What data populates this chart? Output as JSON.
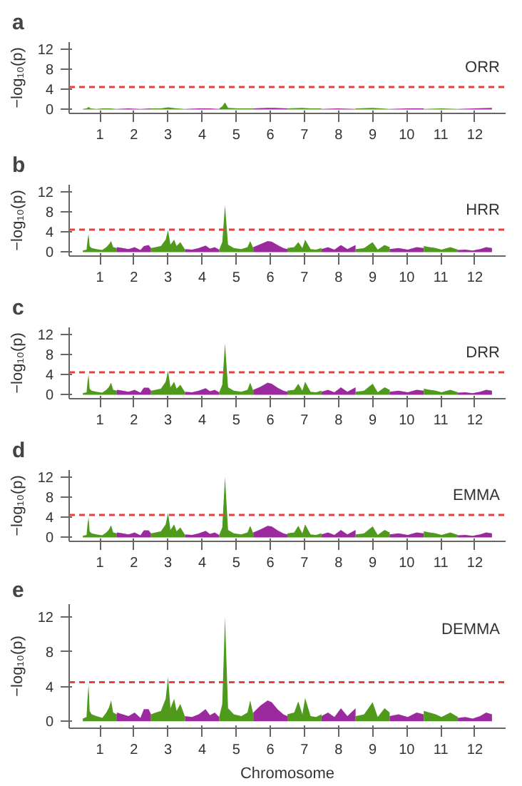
{
  "chart_data": [
    {
      "type": "area",
      "title": "a",
      "ylabel": "−log₁₀(p)",
      "annotations": [
        "ORR"
      ],
      "xlim": [
        0.1,
        12.9
      ],
      "ylim": [
        -0.8,
        13.5
      ],
      "yticks": [
        0,
        4,
        8,
        12
      ],
      "xticks": [
        1,
        2,
        3,
        4,
        5,
        6,
        7,
        8,
        9,
        10,
        11,
        12
      ],
      "ref_lines": [
        {
          "axis": "y",
          "value": 4.5,
          "color": "#e8413a",
          "line_style": "dashed"
        }
      ],
      "series": [
        {
          "color": "#4f9a1c",
          "x": [
            0.5,
            0.61,
            0.67,
            0.73,
            0.9,
            1.07,
            1.3,
            1.5
          ],
          "values": [
            0.1,
            0.2,
            0.5,
            0.2,
            0.1,
            0.2,
            0.2,
            0.1
          ]
        },
        {
          "color": "#9b2a9e",
          "x": [
            1.5,
            1.84,
            2.19,
            2.5
          ],
          "values": [
            0.1,
            0.2,
            0.1,
            0.2
          ]
        },
        {
          "color": "#4f9a1c",
          "x": [
            2.5,
            2.79,
            3.0,
            3.25,
            3.5
          ],
          "values": [
            0.2,
            0.2,
            0.4,
            0.2,
            0.1
          ]
        },
        {
          "color": "#9b2a9e",
          "x": [
            3.5,
            3.9,
            4.23,
            4.5
          ],
          "values": [
            0.1,
            0.2,
            0.2,
            0.1
          ]
        },
        {
          "color": "#4f9a1c",
          "x": [
            4.5,
            4.59,
            4.67,
            4.76,
            5.07,
            5.5
          ],
          "values": [
            0.2,
            0.6,
            1.4,
            0.3,
            0.2,
            0.2
          ]
        },
        {
          "color": "#9b2a9e",
          "x": [
            5.5,
            5.92,
            6.13,
            6.5
          ],
          "values": [
            0.2,
            0.3,
            0.3,
            0.2
          ]
        },
        {
          "color": "#4f9a1c",
          "x": [
            6.5,
            6.94,
            7.18,
            7.5
          ],
          "values": [
            0.2,
            0.3,
            0.2,
            0.2
          ]
        },
        {
          "color": "#9b2a9e",
          "x": [
            7.5,
            7.98,
            8.5
          ],
          "values": [
            0.1,
            0.2,
            0.1
          ]
        },
        {
          "color": "#4f9a1c",
          "x": [
            8.5,
            9.0,
            9.5
          ],
          "values": [
            0.2,
            0.3,
            0.1
          ]
        },
        {
          "color": "#9b2a9e",
          "x": [
            9.5,
            10.03,
            10.5
          ],
          "values": [
            0.1,
            0.2,
            0.2
          ]
        },
        {
          "color": "#4f9a1c",
          "x": [
            10.5,
            11.02,
            11.5
          ],
          "values": [
            0.1,
            0.2,
            0.1
          ]
        },
        {
          "color": "#9b2a9e",
          "x": [
            11.5,
            11.98,
            12.5
          ],
          "values": [
            0.1,
            0.2,
            0.3
          ]
        }
      ]
    },
    {
      "type": "area",
      "title": "b",
      "ylabel": "−log₁₀(p)",
      "annotations": [
        "HRR"
      ],
      "xlim": [
        0.1,
        12.9
      ],
      "ylim": [
        -0.8,
        13.5
      ],
      "yticks": [
        0,
        4,
        8,
        12
      ],
      "xticks": [
        1,
        2,
        3,
        4,
        5,
        6,
        7,
        8,
        9,
        10,
        11,
        12
      ],
      "ref_lines": [
        {
          "axis": "y",
          "value": 4.5,
          "color": "#e8413a",
          "line_style": "dashed"
        }
      ],
      "series": [
        {
          "color": "#4f9a1c",
          "x": [
            0.5,
            0.61,
            0.64,
            0.67,
            0.7,
            0.76,
            0.9,
            1.07,
            1.19,
            1.27,
            1.33,
            1.39,
            1.5
          ],
          "values": [
            0.3,
            0.5,
            2.5,
            3.6,
            1.2,
            0.8,
            0.6,
            0.4,
            1.0,
            1.6,
            2.2,
            1.0,
            0.8
          ]
        },
        {
          "color": "#9b2a9e",
          "x": [
            1.5,
            1.67,
            1.84,
            2.02,
            2.19,
            2.29,
            2.43,
            2.5
          ],
          "values": [
            1.0,
            0.8,
            0.6,
            1.0,
            0.4,
            1.2,
            1.4,
            0.8
          ]
        },
        {
          "color": "#4f9a1c",
          "x": [
            2.5,
            2.64,
            2.79,
            2.93,
            3.0,
            3.07,
            3.18,
            3.25,
            3.36,
            3.5
          ],
          "values": [
            0.8,
            1.0,
            1.2,
            2.5,
            4.4,
            1.5,
            2.5,
            1.2,
            2.0,
            0.5
          ]
        },
        {
          "color": "#9b2a9e",
          "x": [
            3.5,
            3.7,
            3.9,
            4.1,
            4.23,
            4.37,
            4.5
          ],
          "values": [
            0.6,
            0.5,
            0.8,
            1.3,
            0.7,
            1.0,
            0.5
          ]
        },
        {
          "color": "#4f9a1c",
          "x": [
            4.5,
            4.59,
            4.67,
            4.76,
            4.93,
            5.15,
            5.33,
            5.41,
            5.5
          ],
          "values": [
            0.5,
            2.0,
            9.4,
            1.5,
            0.8,
            0.6,
            1.0,
            2.2,
            0.8
          ]
        },
        {
          "color": "#9b2a9e",
          "x": [
            5.5,
            5.71,
            5.92,
            6.04,
            6.21,
            6.38,
            6.5
          ],
          "values": [
            1.0,
            1.6,
            2.2,
            2.1,
            1.4,
            0.8,
            0.6
          ]
        },
        {
          "color": "#4f9a1c",
          "x": [
            6.5,
            6.7,
            6.82,
            6.94,
            7.02,
            7.18,
            7.34,
            7.5
          ],
          "values": [
            0.8,
            1.0,
            2.0,
            0.8,
            2.5,
            0.6,
            0.5,
            0.8
          ]
        },
        {
          "color": "#9b2a9e",
          "x": [
            7.5,
            7.69,
            7.88,
            8.07,
            8.26,
            8.5
          ],
          "values": [
            0.6,
            1.0,
            0.5,
            1.4,
            0.6,
            1.4
          ]
        },
        {
          "color": "#4f9a1c",
          "x": [
            8.5,
            8.75,
            9.0,
            9.15,
            9.35,
            9.5
          ],
          "values": [
            0.6,
            0.8,
            2.0,
            0.5,
            1.4,
            1.0
          ]
        },
        {
          "color": "#9b2a9e",
          "x": [
            9.5,
            9.76,
            10.03,
            10.29,
            10.5
          ],
          "values": [
            0.6,
            0.8,
            0.5,
            1.0,
            0.8
          ]
        },
        {
          "color": "#4f9a1c",
          "x": [
            10.5,
            10.67,
            10.85,
            11.02,
            11.28,
            11.5
          ],
          "values": [
            1.2,
            1.0,
            0.8,
            0.5,
            1.0,
            0.5
          ]
        },
        {
          "color": "#9b2a9e",
          "x": [
            11.5,
            11.72,
            11.93,
            12.15,
            12.33,
            12.5
          ],
          "values": [
            0.4,
            0.5,
            0.3,
            0.6,
            1.0,
            0.8
          ]
        }
      ]
    },
    {
      "type": "area",
      "title": "c",
      "ylabel": "−log₁₀(p)",
      "annotations": [
        "DRR"
      ],
      "xlim": [
        0.1,
        12.9
      ],
      "ylim": [
        -0.8,
        13.5
      ],
      "yticks": [
        0,
        4,
        8,
        12
      ],
      "xticks": [
        1,
        2,
        3,
        4,
        5,
        6,
        7,
        8,
        9,
        10,
        11,
        12
      ],
      "ref_lines": [
        {
          "axis": "y",
          "value": 4.5,
          "color": "#e8413a",
          "line_style": "dashed"
        }
      ],
      "series": [
        {
          "color": "#4f9a1c",
          "x": [
            0.5,
            0.61,
            0.64,
            0.67,
            0.7,
            0.76,
            0.9,
            1.07,
            1.19,
            1.27,
            1.33,
            1.39,
            1.5
          ],
          "values": [
            0.3,
            0.5,
            2.7,
            4.0,
            1.2,
            0.8,
            0.6,
            0.4,
            1.0,
            1.6,
            2.4,
            1.0,
            0.8
          ]
        },
        {
          "color": "#9b2a9e",
          "x": [
            1.5,
            1.67,
            1.84,
            2.02,
            2.19,
            2.29,
            2.43,
            2.5
          ],
          "values": [
            1.0,
            0.8,
            0.6,
            1.0,
            0.4,
            1.4,
            1.4,
            0.8
          ]
        },
        {
          "color": "#4f9a1c",
          "x": [
            2.5,
            2.64,
            2.79,
            2.93,
            3.0,
            3.07,
            3.18,
            3.25,
            3.36,
            3.5
          ],
          "values": [
            0.8,
            1.0,
            1.2,
            2.6,
            4.8,
            1.5,
            2.6,
            1.2,
            2.0,
            0.5
          ]
        },
        {
          "color": "#9b2a9e",
          "x": [
            3.5,
            3.7,
            3.9,
            4.1,
            4.23,
            4.37,
            4.5
          ],
          "values": [
            0.6,
            0.5,
            0.8,
            1.3,
            0.7,
            1.0,
            0.5
          ]
        },
        {
          "color": "#4f9a1c",
          "x": [
            4.5,
            4.59,
            4.67,
            4.76,
            4.93,
            5.15,
            5.33,
            5.41,
            5.5
          ],
          "values": [
            0.5,
            2.0,
            10.3,
            1.5,
            0.8,
            0.6,
            1.0,
            2.4,
            0.8
          ]
        },
        {
          "color": "#9b2a9e",
          "x": [
            5.5,
            5.71,
            5.92,
            6.04,
            6.21,
            6.38,
            6.5
          ],
          "values": [
            1.0,
            1.6,
            2.4,
            2.2,
            1.4,
            0.8,
            0.6
          ]
        },
        {
          "color": "#4f9a1c",
          "x": [
            6.5,
            6.7,
            6.82,
            6.94,
            7.02,
            7.18,
            7.34,
            7.5
          ],
          "values": [
            0.8,
            1.0,
            2.2,
            0.8,
            2.6,
            0.6,
            0.5,
            0.8
          ]
        },
        {
          "color": "#9b2a9e",
          "x": [
            7.5,
            7.69,
            7.88,
            8.07,
            8.26,
            8.5
          ],
          "values": [
            0.6,
            1.0,
            0.5,
            1.5,
            0.6,
            1.5
          ]
        },
        {
          "color": "#4f9a1c",
          "x": [
            8.5,
            8.75,
            9.0,
            9.15,
            9.35,
            9.5
          ],
          "values": [
            0.6,
            0.8,
            2.2,
            0.5,
            1.5,
            1.0
          ]
        },
        {
          "color": "#9b2a9e",
          "x": [
            9.5,
            9.76,
            10.03,
            10.29,
            10.5
          ],
          "values": [
            0.6,
            0.8,
            0.5,
            1.0,
            0.8
          ]
        },
        {
          "color": "#4f9a1c",
          "x": [
            10.5,
            10.67,
            10.85,
            11.02,
            11.28,
            11.5
          ],
          "values": [
            1.2,
            1.0,
            0.8,
            0.5,
            1.0,
            0.5
          ]
        },
        {
          "color": "#9b2a9e",
          "x": [
            11.5,
            11.72,
            11.93,
            12.15,
            12.33,
            12.5
          ],
          "values": [
            0.4,
            0.5,
            0.3,
            0.6,
            1.0,
            0.8
          ]
        }
      ]
    },
    {
      "type": "area",
      "title": "d",
      "ylabel": "−log₁₀(p)",
      "annotations": [
        "EMMA"
      ],
      "xlim": [
        0.1,
        12.9
      ],
      "ylim": [
        -0.8,
        13.5
      ],
      "yticks": [
        0,
        4,
        8,
        12
      ],
      "xticks": [
        1,
        2,
        3,
        4,
        5,
        6,
        7,
        8,
        9,
        10,
        11,
        12
      ],
      "ref_lines": [
        {
          "axis": "y",
          "value": 4.5,
          "color": "#e8413a",
          "line_style": "dashed"
        }
      ],
      "series": [
        {
          "color": "#4f9a1c",
          "x": [
            0.5,
            0.61,
            0.64,
            0.67,
            0.7,
            0.76,
            0.9,
            1.07,
            1.19,
            1.27,
            1.33,
            1.39,
            1.5
          ],
          "values": [
            0.3,
            0.5,
            2.7,
            4.0,
            1.2,
            0.8,
            0.6,
            0.4,
            1.0,
            1.6,
            2.4,
            1.0,
            0.8
          ]
        },
        {
          "color": "#9b2a9e",
          "x": [
            1.5,
            1.67,
            1.84,
            2.02,
            2.19,
            2.29,
            2.43,
            2.5
          ],
          "values": [
            1.0,
            0.8,
            0.6,
            1.0,
            0.4,
            1.4,
            1.4,
            0.8
          ]
        },
        {
          "color": "#4f9a1c",
          "x": [
            2.5,
            2.64,
            2.79,
            2.93,
            3.0,
            3.07,
            3.18,
            3.25,
            3.36,
            3.5
          ],
          "values": [
            0.8,
            1.0,
            1.2,
            2.6,
            4.9,
            1.5,
            2.6,
            1.2,
            2.0,
            0.5
          ]
        },
        {
          "color": "#9b2a9e",
          "x": [
            3.5,
            3.7,
            3.9,
            4.1,
            4.23,
            4.37,
            4.5
          ],
          "values": [
            0.6,
            0.5,
            0.8,
            1.3,
            0.7,
            1.0,
            0.5
          ]
        },
        {
          "color": "#4f9a1c",
          "x": [
            4.5,
            4.59,
            4.67,
            4.76,
            4.93,
            5.15,
            5.33,
            5.41,
            5.5
          ],
          "values": [
            0.5,
            2.0,
            12.1,
            1.5,
            0.8,
            0.6,
            1.0,
            2.3,
            0.8
          ]
        },
        {
          "color": "#9b2a9e",
          "x": [
            5.5,
            5.71,
            5.92,
            6.04,
            6.21,
            6.38,
            6.5
          ],
          "values": [
            1.0,
            1.6,
            2.3,
            2.2,
            1.4,
            0.8,
            0.6
          ]
        },
        {
          "color": "#4f9a1c",
          "x": [
            6.5,
            6.7,
            6.82,
            6.94,
            7.02,
            7.18,
            7.34,
            7.5
          ],
          "values": [
            0.8,
            1.0,
            2.3,
            0.8,
            2.6,
            0.6,
            0.5,
            0.8
          ]
        },
        {
          "color": "#9b2a9e",
          "x": [
            7.5,
            7.69,
            7.88,
            8.07,
            8.26,
            8.5
          ],
          "values": [
            0.6,
            1.0,
            0.5,
            1.5,
            0.6,
            1.5
          ]
        },
        {
          "color": "#4f9a1c",
          "x": [
            8.5,
            8.75,
            9.0,
            9.15,
            9.35,
            9.5
          ],
          "values": [
            0.6,
            0.8,
            2.2,
            0.5,
            1.5,
            1.0
          ]
        },
        {
          "color": "#9b2a9e",
          "x": [
            9.5,
            9.76,
            10.03,
            10.29,
            10.5
          ],
          "values": [
            0.6,
            0.8,
            0.5,
            1.0,
            0.8
          ]
        },
        {
          "color": "#4f9a1c",
          "x": [
            10.5,
            10.67,
            10.85,
            11.02,
            11.28,
            11.5
          ],
          "values": [
            1.2,
            1.0,
            0.8,
            0.5,
            1.0,
            0.5
          ]
        },
        {
          "color": "#9b2a9e",
          "x": [
            11.5,
            11.72,
            11.93,
            12.15,
            12.33,
            12.5
          ],
          "values": [
            0.4,
            0.5,
            0.3,
            0.6,
            1.0,
            0.8
          ]
        }
      ]
    },
    {
      "type": "area",
      "title": "e",
      "ylabel": "−log₁₀(p)",
      "xlabel": "Chromosome",
      "annotations": [
        "DEMMA"
      ],
      "xlim": [
        0.1,
        12.9
      ],
      "ylim": [
        -0.8,
        13.5
      ],
      "yticks": [
        0,
        4,
        8,
        12
      ],
      "xticks": [
        1,
        2,
        3,
        4,
        5,
        6,
        7,
        8,
        9,
        10,
        11,
        12
      ],
      "ref_lines": [
        {
          "axis": "y",
          "value": 4.5,
          "color": "#e8413a",
          "line_style": "dashed"
        }
      ],
      "series": [
        {
          "color": "#4f9a1c",
          "x": [
            0.5,
            0.61,
            0.64,
            0.67,
            0.7,
            0.76,
            0.9,
            1.07,
            1.19,
            1.27,
            1.33,
            1.39,
            1.5
          ],
          "values": [
            0.3,
            0.5,
            2.8,
            4.2,
            1.2,
            0.8,
            0.6,
            0.4,
            1.0,
            1.6,
            2.4,
            1.0,
            0.8
          ]
        },
        {
          "color": "#9b2a9e",
          "x": [
            1.5,
            1.67,
            1.84,
            2.02,
            2.19,
            2.29,
            2.43,
            2.5
          ],
          "values": [
            1.0,
            0.8,
            0.6,
            1.0,
            0.4,
            1.4,
            1.4,
            0.8
          ]
        },
        {
          "color": "#4f9a1c",
          "x": [
            2.5,
            2.64,
            2.79,
            2.93,
            3.0,
            3.07,
            3.18,
            3.25,
            3.36,
            3.5
          ],
          "values": [
            0.8,
            1.0,
            1.2,
            2.6,
            5.1,
            1.5,
            2.6,
            1.2,
            2.0,
            0.5
          ]
        },
        {
          "color": "#9b2a9e",
          "x": [
            3.5,
            3.7,
            3.9,
            4.1,
            4.23,
            4.37,
            4.5
          ],
          "values": [
            0.6,
            0.5,
            0.8,
            1.4,
            0.7,
            1.0,
            0.5
          ]
        },
        {
          "color": "#4f9a1c",
          "x": [
            4.5,
            4.59,
            4.67,
            4.76,
            4.93,
            5.15,
            5.33,
            5.41,
            5.5
          ],
          "values": [
            0.5,
            2.0,
            12.0,
            1.5,
            0.8,
            0.6,
            1.0,
            2.4,
            0.8
          ]
        },
        {
          "color": "#9b2a9e",
          "x": [
            5.5,
            5.71,
            5.92,
            6.04,
            6.21,
            6.38,
            6.5
          ],
          "values": [
            1.0,
            1.8,
            2.4,
            2.2,
            1.4,
            0.8,
            0.6
          ]
        },
        {
          "color": "#4f9a1c",
          "x": [
            6.5,
            6.7,
            6.82,
            6.94,
            7.02,
            7.18,
            7.34,
            7.5
          ],
          "values": [
            0.8,
            1.0,
            2.3,
            0.8,
            2.7,
            0.6,
            0.5,
            0.8
          ]
        },
        {
          "color": "#9b2a9e",
          "x": [
            7.5,
            7.69,
            7.88,
            8.07,
            8.26,
            8.5
          ],
          "values": [
            0.6,
            1.0,
            0.5,
            1.5,
            0.6,
            1.5
          ]
        },
        {
          "color": "#4f9a1c",
          "x": [
            8.5,
            8.75,
            9.0,
            9.15,
            9.35,
            9.5
          ],
          "values": [
            0.6,
            0.8,
            2.2,
            0.5,
            1.5,
            1.0
          ]
        },
        {
          "color": "#9b2a9e",
          "x": [
            9.5,
            9.76,
            10.03,
            10.29,
            10.5
          ],
          "values": [
            0.6,
            0.8,
            0.5,
            1.0,
            0.8
          ]
        },
        {
          "color": "#4f9a1c",
          "x": [
            10.5,
            10.67,
            10.85,
            11.02,
            11.28,
            11.5
          ],
          "values": [
            1.2,
            1.0,
            0.8,
            0.5,
            1.0,
            0.5
          ]
        },
        {
          "color": "#9b2a9e",
          "x": [
            11.5,
            11.72,
            11.93,
            12.15,
            12.33,
            12.5
          ],
          "values": [
            0.4,
            0.5,
            0.3,
            0.6,
            1.0,
            0.8
          ]
        }
      ]
    }
  ]
}
